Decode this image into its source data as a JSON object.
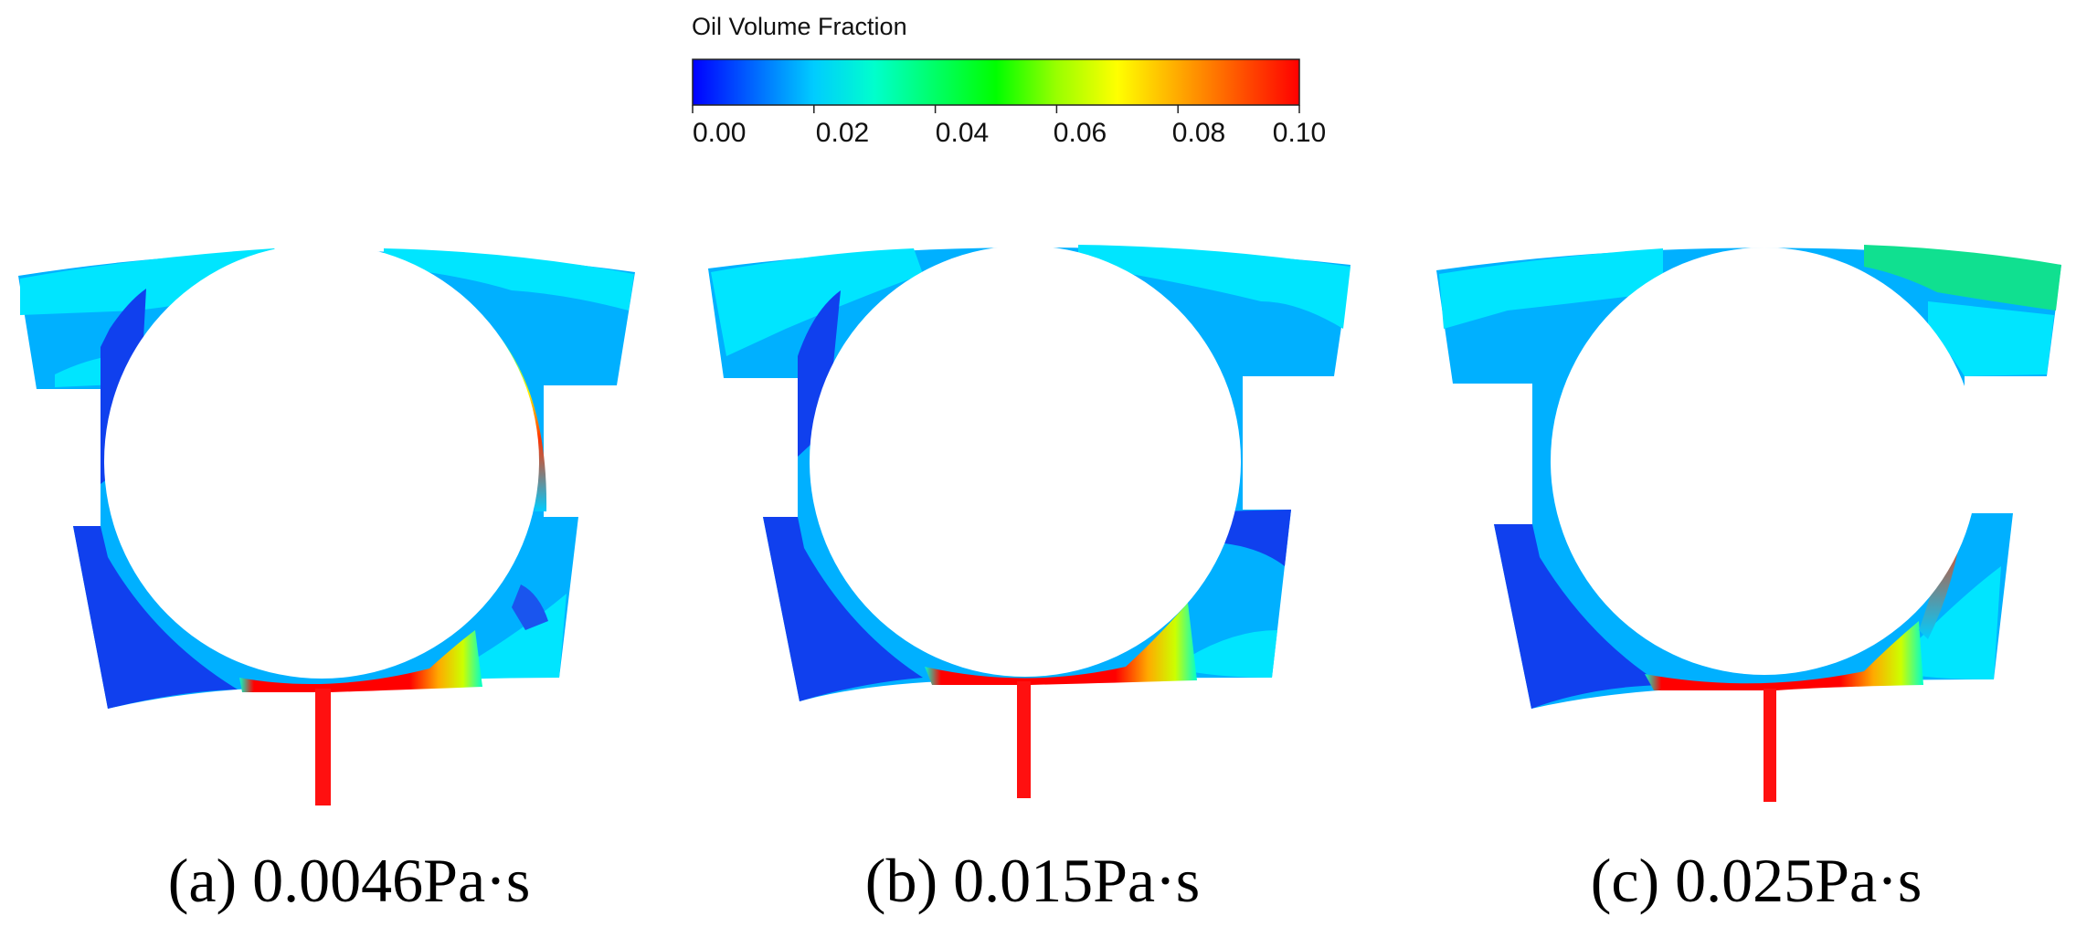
{
  "colorbar": {
    "title": "Oil Volume Fraction",
    "min": 0.0,
    "max": 0.1,
    "ticks": [
      "0.00",
      "0.02",
      "0.04",
      "0.06",
      "0.08",
      "0.10"
    ],
    "colormap": [
      "#0000ff",
      "#0066ff",
      "#00ccff",
      "#00ffcc",
      "#00ff33",
      "#66ff00",
      "#ccff00",
      "#ffee00",
      "#ffaa00",
      "#ff5500",
      "#ff0000"
    ]
  },
  "panels": [
    {
      "caption": "(a) 0.0046Pa·s"
    },
    {
      "caption": "(b) 0.015Pa·s"
    },
    {
      "caption": "(c) 0.025Pa·s"
    }
  ]
}
